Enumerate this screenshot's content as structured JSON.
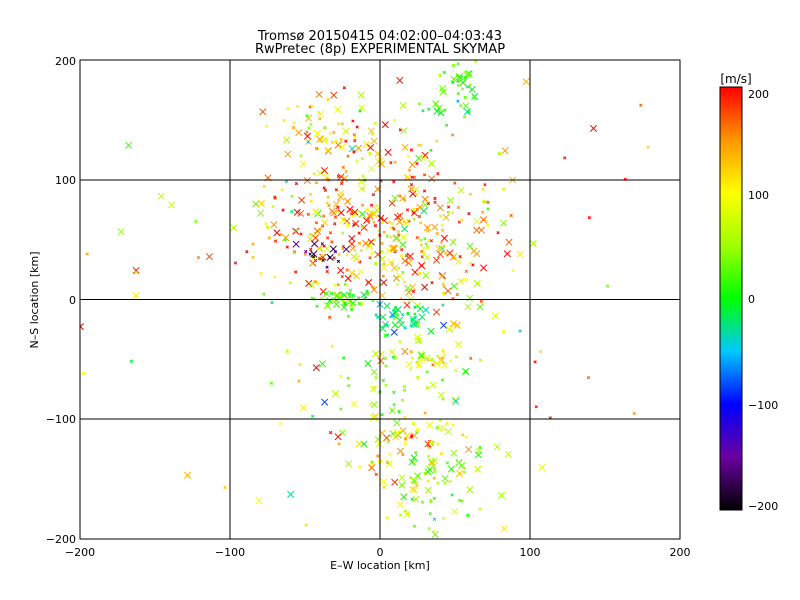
{
  "chart_data": [
    {
      "type": "scatter",
      "title": "Tromsø 20150415 04:02:00–04:03:43",
      "subtitle": "RwPretec (8p) EXPERIMENTAL SKYMAP",
      "xlabel": "E–W location [km]",
      "ylabel": "N–S location [km]",
      "xlim": [
        -200,
        200
      ],
      "ylim": [
        -200,
        200
      ],
      "xticks": [
        "−200",
        "−100",
        "0",
        "100",
        "200"
      ],
      "yticks": [
        "200",
        "100",
        "0",
        "−100",
        "−200"
      ],
      "xtick_values": [
        -200,
        -100,
        0,
        100,
        200
      ],
      "ytick_values": [
        200,
        100,
        0,
        -100,
        -200
      ],
      "grid": true,
      "marker": "x",
      "color_variable": "velocity [m/s]",
      "clusters": [
        {
          "x": 55,
          "y": 180,
          "sx": 6,
          "sy": 8,
          "n": 30,
          "v": 20,
          "vs": 20
        },
        {
          "x": 45,
          "y": 160,
          "sx": 10,
          "sy": 6,
          "n": 15,
          "v": 10,
          "vs": 30
        },
        {
          "x": -35,
          "y": 140,
          "sx": 15,
          "sy": 15,
          "n": 60,
          "v": 120,
          "vs": 50
        },
        {
          "x": 5,
          "y": 120,
          "sx": 15,
          "sy": 20,
          "n": 40,
          "v": 140,
          "vs": 50
        },
        {
          "x": -10,
          "y": 55,
          "sx": 40,
          "sy": 30,
          "n": 280,
          "v": 150,
          "vs": 60
        },
        {
          "x": 30,
          "y": 50,
          "sx": 25,
          "sy": 25,
          "n": 90,
          "v": 120,
          "vs": 60
        },
        {
          "x": -25,
          "y": 0,
          "sx": 10,
          "sy": 4,
          "n": 40,
          "v": 20,
          "vs": 20
        },
        {
          "x": 15,
          "y": -15,
          "sx": 10,
          "sy": 6,
          "n": 40,
          "v": -20,
          "vs": 20
        },
        {
          "x": 35,
          "y": -50,
          "sx": 10,
          "sy": 6,
          "n": 30,
          "v": 80,
          "vs": 40
        },
        {
          "x": 5,
          "y": -75,
          "sx": 25,
          "sy": 25,
          "n": 60,
          "v": 40,
          "vs": 40
        },
        {
          "x": 10,
          "y": -120,
          "sx": 15,
          "sy": 10,
          "n": 40,
          "v": 130,
          "vs": 50
        },
        {
          "x": 35,
          "y": -150,
          "sx": 18,
          "sy": 25,
          "n": 90,
          "v": 60,
          "vs": 40
        },
        {
          "x": -40,
          "y": 40,
          "sx": 8,
          "sy": 8,
          "n": 15,
          "v": -180,
          "vs": 20
        },
        {
          "x": 0,
          "y": 0,
          "sx": 110,
          "sy": 110,
          "n": 120,
          "v": 100,
          "vs": 80
        }
      ]
    },
    {
      "type": "heatmap",
      "title": "[m/s]",
      "range": [
        -200,
        200
      ],
      "ticks": [
        "200",
        "100",
        "0",
        "−100",
        "−200"
      ],
      "tick_values": [
        200,
        100,
        0,
        -100,
        -200
      ],
      "colormap": [
        {
          "v": -200,
          "color": "#000000"
        },
        {
          "v": -150,
          "color": "#6a00a0"
        },
        {
          "v": -100,
          "color": "#0000ff"
        },
        {
          "v": -50,
          "color": "#00c8ff"
        },
        {
          "v": 0,
          "color": "#00ff00"
        },
        {
          "v": 50,
          "color": "#a0ff00"
        },
        {
          "v": 100,
          "color": "#ffff00"
        },
        {
          "v": 150,
          "color": "#ff9600"
        },
        {
          "v": 200,
          "color": "#ff0000"
        }
      ]
    }
  ]
}
